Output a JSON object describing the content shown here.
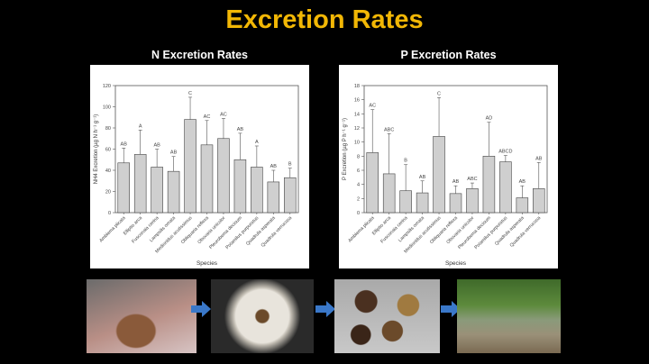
{
  "title": "Excretion Rates",
  "chart_data": [
    {
      "type": "bar",
      "title": "N Excretion Rates",
      "xlabel": "Species",
      "ylabel": "NH4 Excretion (µg N h⁻¹ g⁻¹)",
      "ylim": [
        0,
        120
      ],
      "yticks": [
        0,
        20,
        40,
        60,
        80,
        100,
        120
      ],
      "categories": [
        "Amblema plicata",
        "Elliptio arca",
        "Fusconaia cerina",
        "Lampsilis ornata",
        "Medionidus acutissimus",
        "Obliquaria reflexa",
        "Obovaria unicolor",
        "Pleurobema decisum",
        "Potamilus purpuratus",
        "Quadrula asperata",
        "Quadrula verrucosa"
      ],
      "values": [
        47,
        55,
        43,
        39,
        88,
        64,
        70,
        50,
        43,
        29,
        33
      ],
      "error_upper": [
        61,
        78,
        60,
        53,
        109,
        87,
        89,
        75,
        63,
        40,
        42
      ],
      "labels": [
        "AB",
        "A",
        "AB",
        "AB",
        "C",
        "AC",
        "AC",
        "AB",
        "A",
        "AB",
        "B"
      ]
    },
    {
      "type": "bar",
      "title": "P Excretion Rates",
      "xlabel": "Species",
      "ylabel": "P Excretion (µg P h⁻¹ g⁻¹)",
      "ylim": [
        0,
        18
      ],
      "yticks": [
        0,
        2,
        4,
        6,
        8,
        10,
        12,
        14,
        16,
        18
      ],
      "categories": [
        "Amblema plicata",
        "Elliptio arca",
        "Fusconaia cerina",
        "Lampsilis ornata",
        "Medionidus acutissimus",
        "Obliquaria reflexa",
        "Obovaria unicolor",
        "Pleurobema decisum",
        "Potamilus purpuratus",
        "Quadrula asperata",
        "Quadrula verrucosa"
      ],
      "values": [
        8.5,
        5.5,
        3.1,
        2.8,
        10.8,
        2.7,
        3.4,
        8.0,
        7.2,
        2.1,
        3.4
      ],
      "error_upper": [
        14.6,
        11.2,
        6.8,
        4.5,
        16.3,
        3.8,
        4.2,
        12.8,
        8.1,
        3.8,
        7.1
      ],
      "labels": [
        "AC",
        "ABC",
        "B",
        "AB",
        "C",
        "AB",
        "ABC",
        "AD",
        "ABCD",
        "AB",
        "AB"
      ]
    }
  ],
  "colors": {
    "title": "#f2b705",
    "bar": "#cfcfcf",
    "arrow": "#3a78c9"
  }
}
